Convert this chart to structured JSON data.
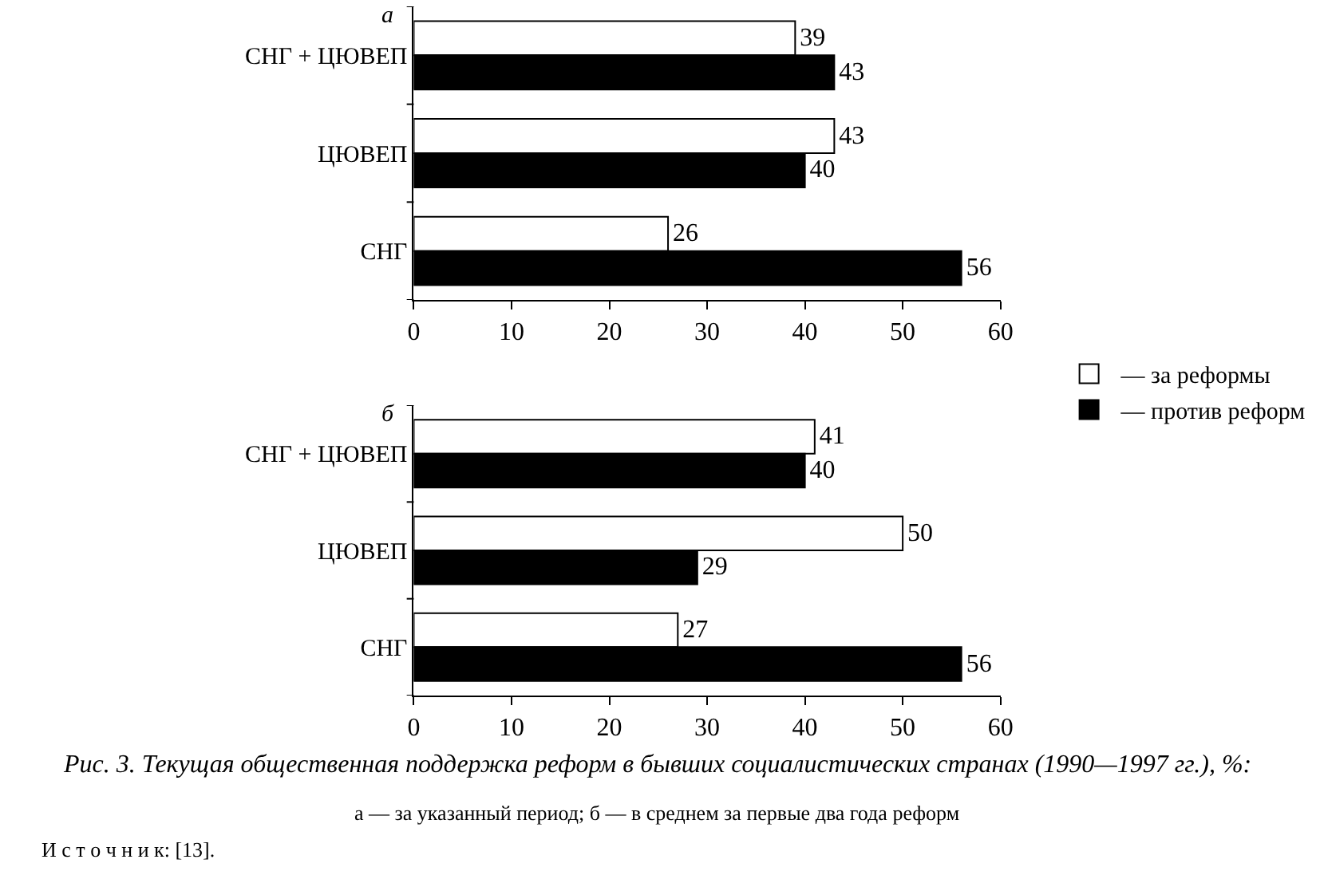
{
  "chart_data": [
    {
      "type": "bar",
      "orientation": "horizontal",
      "title": "а",
      "categories": [
        "СНГ + ЦЮВЕП",
        "ЦЮВЕП",
        "СНГ"
      ],
      "series": [
        {
          "name": "— за реформы",
          "color": "#ffffff",
          "values": [
            39,
            43,
            26
          ]
        },
        {
          "name": "— против реформ",
          "color": "#000000",
          "values": [
            43,
            40,
            56
          ]
        }
      ],
      "xlim": [
        0,
        60
      ],
      "xticks": [
        0,
        10,
        20,
        30,
        40,
        50,
        60
      ],
      "data_labels": true,
      "legend": "right"
    },
    {
      "type": "bar",
      "orientation": "horizontal",
      "title": "б",
      "categories": [
        "СНГ + ЦЮВЕП",
        "ЦЮВЕП",
        "СНГ"
      ],
      "series": [
        {
          "color": "#ffffff",
          "values": [
            41,
            50,
            27
          ]
        },
        {
          "color": "#000000",
          "values": [
            40,
            29,
            56
          ]
        }
      ],
      "xlim": [
        0,
        60
      ],
      "xticks": [
        0,
        10,
        20,
        30,
        40,
        50,
        60
      ],
      "data_labels": true,
      "annotations": [
        "Рис. 3. Текущая общественная поддержка реформ в бывших социалистических странах (1990—1997 гг.), %:",
        "а — за указанный период; б — в среднем за первые два года реформ",
        "И с т о ч н и к: [13]."
      ]
    }
  ]
}
